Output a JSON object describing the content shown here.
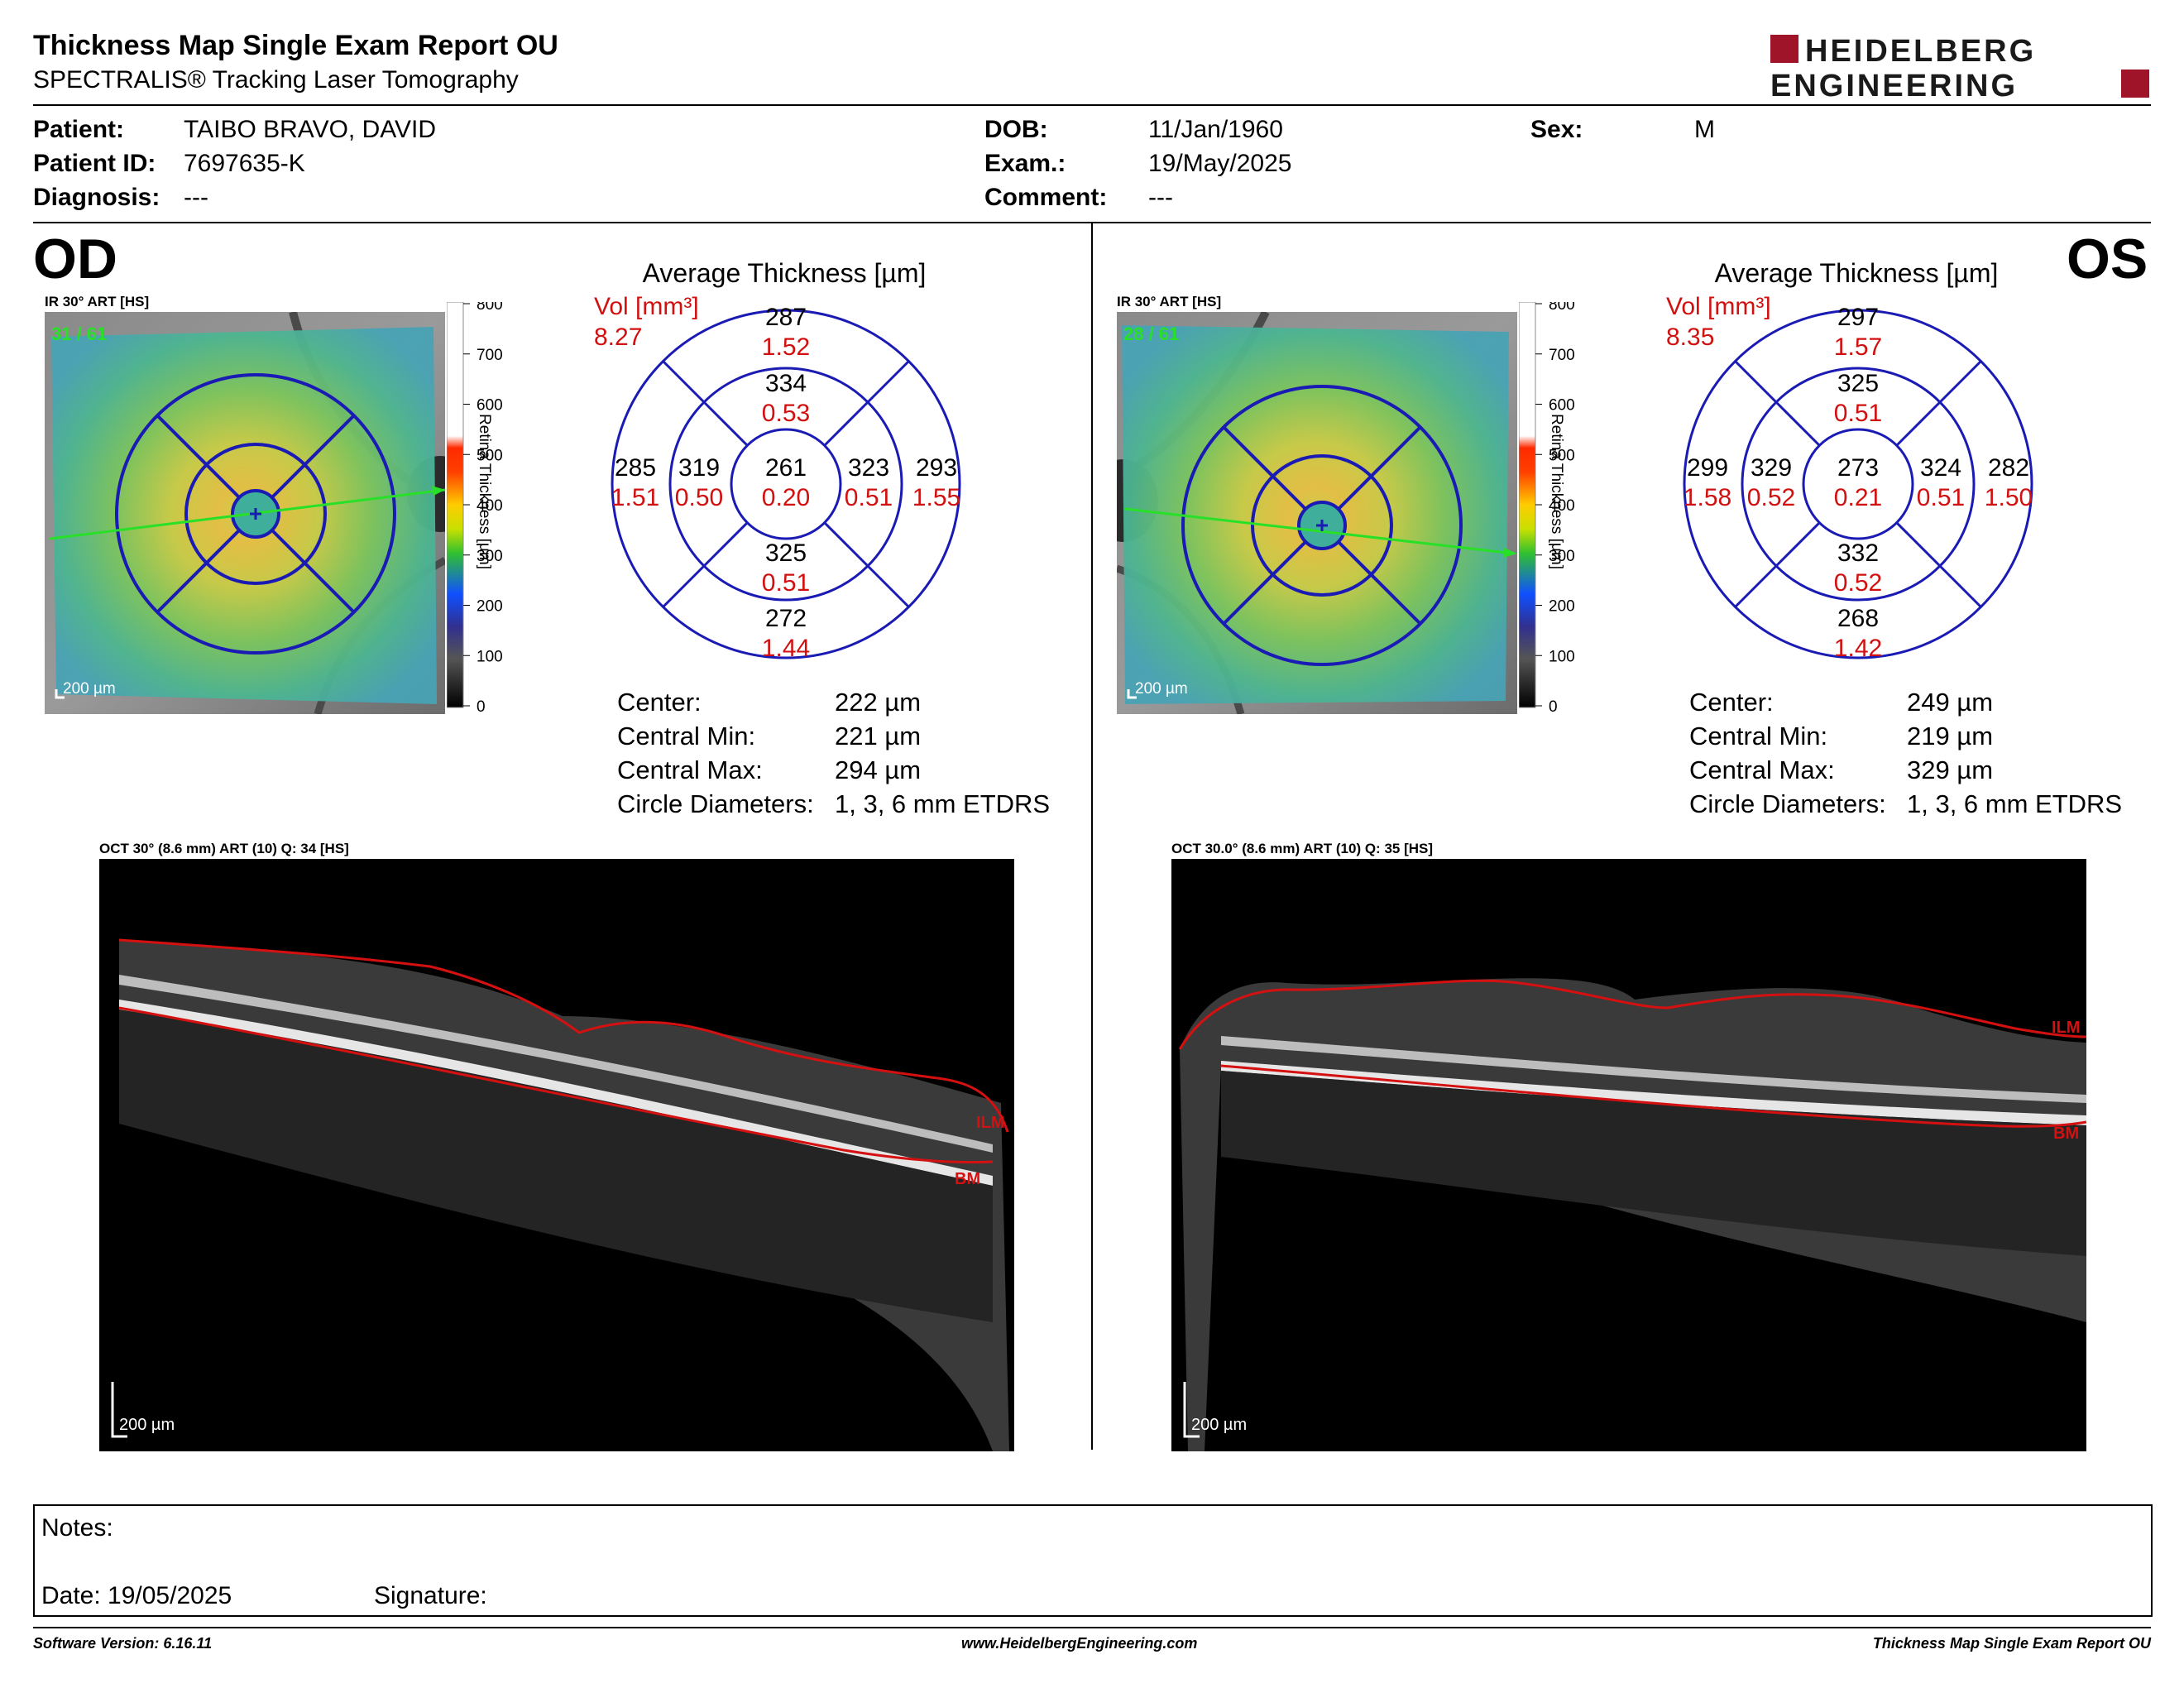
{
  "header": {
    "title": "Thickness Map Single Exam Report OU",
    "subtitle": "SPECTRALIS® Tracking Laser Tomography",
    "logo_line1": "HEIDELBERG",
    "logo_line2": "ENGINEERING"
  },
  "patient": {
    "patient_label": "Patient:",
    "patient_value": "TAIBO BRAVO, DAVID",
    "id_label": "Patient ID:",
    "id_value": "7697635-K",
    "diagnosis_label": "Diagnosis:",
    "diagnosis_value": "---",
    "dob_label": "DOB:",
    "dob_value": "11/Jan/1960",
    "exam_label": "Exam.:",
    "exam_value": "19/May/2025",
    "comment_label": "Comment:",
    "comment_value": "---",
    "sex_label": "Sex:",
    "sex_value": "M"
  },
  "od": {
    "eye": "OD",
    "ir_label": "IR 30° ART [HS]",
    "frame_counter": "31 / 61",
    "scale_label": "200 µm",
    "colorbar_ticks": [
      "800",
      "700",
      "600",
      "500",
      "400",
      "300",
      "200",
      "100",
      "0"
    ],
    "colorbar_title": "Retina Thickness [µm]",
    "avg_title": "Average Thickness [µm]",
    "vol_label": "Vol [mm³]",
    "vol_total": "8.27",
    "sectors": {
      "sup_outer": {
        "t": "287",
        "v": "1.52"
      },
      "sup_inner": {
        "t": "334",
        "v": "0.53"
      },
      "center": {
        "t": "261",
        "v": "0.20"
      },
      "left_outer": {
        "t": "285",
        "v": "1.51"
      },
      "left_inner": {
        "t": "319",
        "v": "0.50"
      },
      "right_inner": {
        "t": "323",
        "v": "0.51"
      },
      "right_outer": {
        "t": "293",
        "v": "1.55"
      },
      "inf_inner": {
        "t": "325",
        "v": "0.51"
      },
      "inf_outer": {
        "t": "272",
        "v": "1.44"
      }
    },
    "stats": [
      {
        "k": "Center:",
        "v": "222 µm"
      },
      {
        "k": "Central Min:",
        "v": "221 µm"
      },
      {
        "k": "Central Max:",
        "v": "294 µm"
      },
      {
        "k": "Circle Diameters:",
        "v": "1, 3, 6 mm ETDRS"
      }
    ],
    "oct_label": "OCT 30° (8.6 mm) ART (10) Q: 34 [HS]",
    "oct_scale": "200 µm",
    "ilm": "ILM",
    "bm": "BM"
  },
  "os": {
    "eye": "OS",
    "ir_label": "IR 30° ART [HS]",
    "frame_counter": "28 / 61",
    "scale_label": "200 µm",
    "colorbar_ticks": [
      "800",
      "700",
      "600",
      "500",
      "400",
      "300",
      "200",
      "100",
      "0"
    ],
    "colorbar_title": "Retina Thickness [µm]",
    "avg_title": "Average Thickness [µm]",
    "vol_label": "Vol [mm³]",
    "vol_total": "8.35",
    "sectors": {
      "sup_outer": {
        "t": "297",
        "v": "1.57"
      },
      "sup_inner": {
        "t": "325",
        "v": "0.51"
      },
      "center": {
        "t": "273",
        "v": "0.21"
      },
      "left_outer": {
        "t": "299",
        "v": "1.58"
      },
      "left_inner": {
        "t": "329",
        "v": "0.52"
      },
      "right_inner": {
        "t": "324",
        "v": "0.51"
      },
      "right_outer": {
        "t": "282",
        "v": "1.50"
      },
      "inf_inner": {
        "t": "332",
        "v": "0.52"
      },
      "inf_outer": {
        "t": "268",
        "v": "1.42"
      }
    },
    "stats": [
      {
        "k": "Center:",
        "v": "249 µm"
      },
      {
        "k": "Central Min:",
        "v": "219 µm"
      },
      {
        "k": "Central Max:",
        "v": "329 µm"
      },
      {
        "k": "Circle Diameters:",
        "v": "1, 3, 6 mm ETDRS"
      }
    ],
    "oct_label": "OCT 30.0° (8.6 mm) ART (10) Q: 35 [HS]",
    "oct_scale": "200 µm",
    "ilm": "ILM",
    "bm": "BM"
  },
  "notes": {
    "notes_label": "Notes:",
    "date_label": "Date: 19/05/2025",
    "signature_label": "Signature:"
  },
  "footer": {
    "software": "Software Version: 6.16.11",
    "website": "www.HeidelbergEngineering.com",
    "report": "Thickness Map Single Exam Report OU"
  }
}
